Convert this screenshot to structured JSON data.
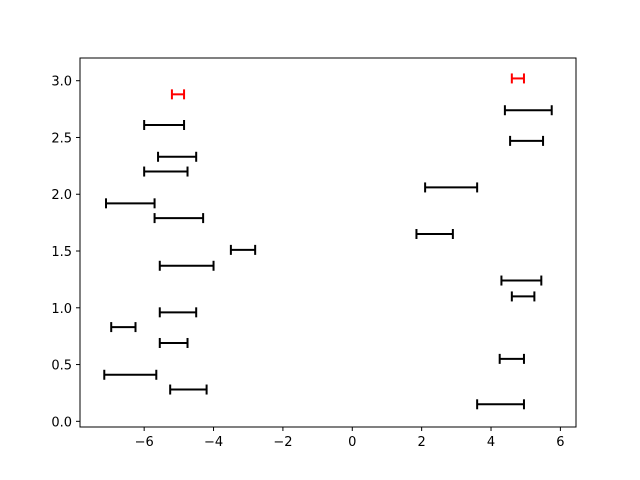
{
  "chart_data": {
    "type": "errorbar-intervals",
    "title": "",
    "xlabel": "",
    "ylabel": "",
    "xlim": [
      -7.85,
      6.45
    ],
    "ylim": [
      -0.05,
      3.2
    ],
    "xticks": [
      -6,
      -4,
      -2,
      0,
      2,
      4,
      6
    ],
    "xtick_labels": [
      "−6",
      "−4",
      "−2",
      "0",
      "2",
      "4",
      "6"
    ],
    "yticks": [
      0.0,
      0.5,
      1.0,
      1.5,
      2.0,
      2.5,
      3.0
    ],
    "ytick_labels": [
      "0.0",
      "0.5",
      "1.0",
      "1.5",
      "2.0",
      "2.5",
      "3.0"
    ],
    "grid": false,
    "legend": "none",
    "colors": {
      "default": "#000000",
      "highlight": "#ff0000"
    },
    "series": [
      {
        "color": "#000000",
        "intervals": [
          {
            "y": 0.15,
            "xmin": 3.6,
            "xmax": 4.95
          },
          {
            "y": 0.28,
            "xmin": -5.25,
            "xmax": -4.2
          },
          {
            "y": 0.41,
            "xmin": -7.15,
            "xmax": -5.65
          },
          {
            "y": 0.55,
            "xmin": 4.25,
            "xmax": 4.95
          },
          {
            "y": 0.69,
            "xmin": -5.55,
            "xmax": -4.75
          },
          {
            "y": 0.83,
            "xmin": -6.95,
            "xmax": -6.25
          },
          {
            "y": 0.96,
            "xmin": -5.55,
            "xmax": -4.5
          },
          {
            "y": 1.1,
            "xmin": 4.6,
            "xmax": 5.25
          },
          {
            "y": 1.24,
            "xmin": 4.3,
            "xmax": 5.45
          },
          {
            "y": 1.37,
            "xmin": -5.55,
            "xmax": -4.0
          },
          {
            "y": 1.51,
            "xmin": -3.5,
            "xmax": -2.8
          },
          {
            "y": 1.65,
            "xmin": 1.85,
            "xmax": 2.9
          },
          {
            "y": 1.79,
            "xmin": -5.7,
            "xmax": -4.3
          },
          {
            "y": 1.92,
            "xmin": -7.1,
            "xmax": -5.7
          },
          {
            "y": 2.06,
            "xmin": 2.1,
            "xmax": 3.6
          },
          {
            "y": 2.2,
            "xmin": -6.0,
            "xmax": -4.75
          },
          {
            "y": 2.33,
            "xmin": -5.6,
            "xmax": -4.5
          },
          {
            "y": 2.47,
            "xmin": 4.55,
            "xmax": 5.5
          },
          {
            "y": 2.61,
            "xmin": -6.0,
            "xmax": -4.85
          },
          {
            "y": 2.74,
            "xmin": 4.4,
            "xmax": 5.75
          }
        ]
      },
      {
        "color": "#ff0000",
        "intervals": [
          {
            "y": 2.88,
            "xmin": -5.2,
            "xmax": -4.85
          },
          {
            "y": 3.02,
            "xmin": 4.6,
            "xmax": 4.95
          }
        ]
      }
    ]
  }
}
